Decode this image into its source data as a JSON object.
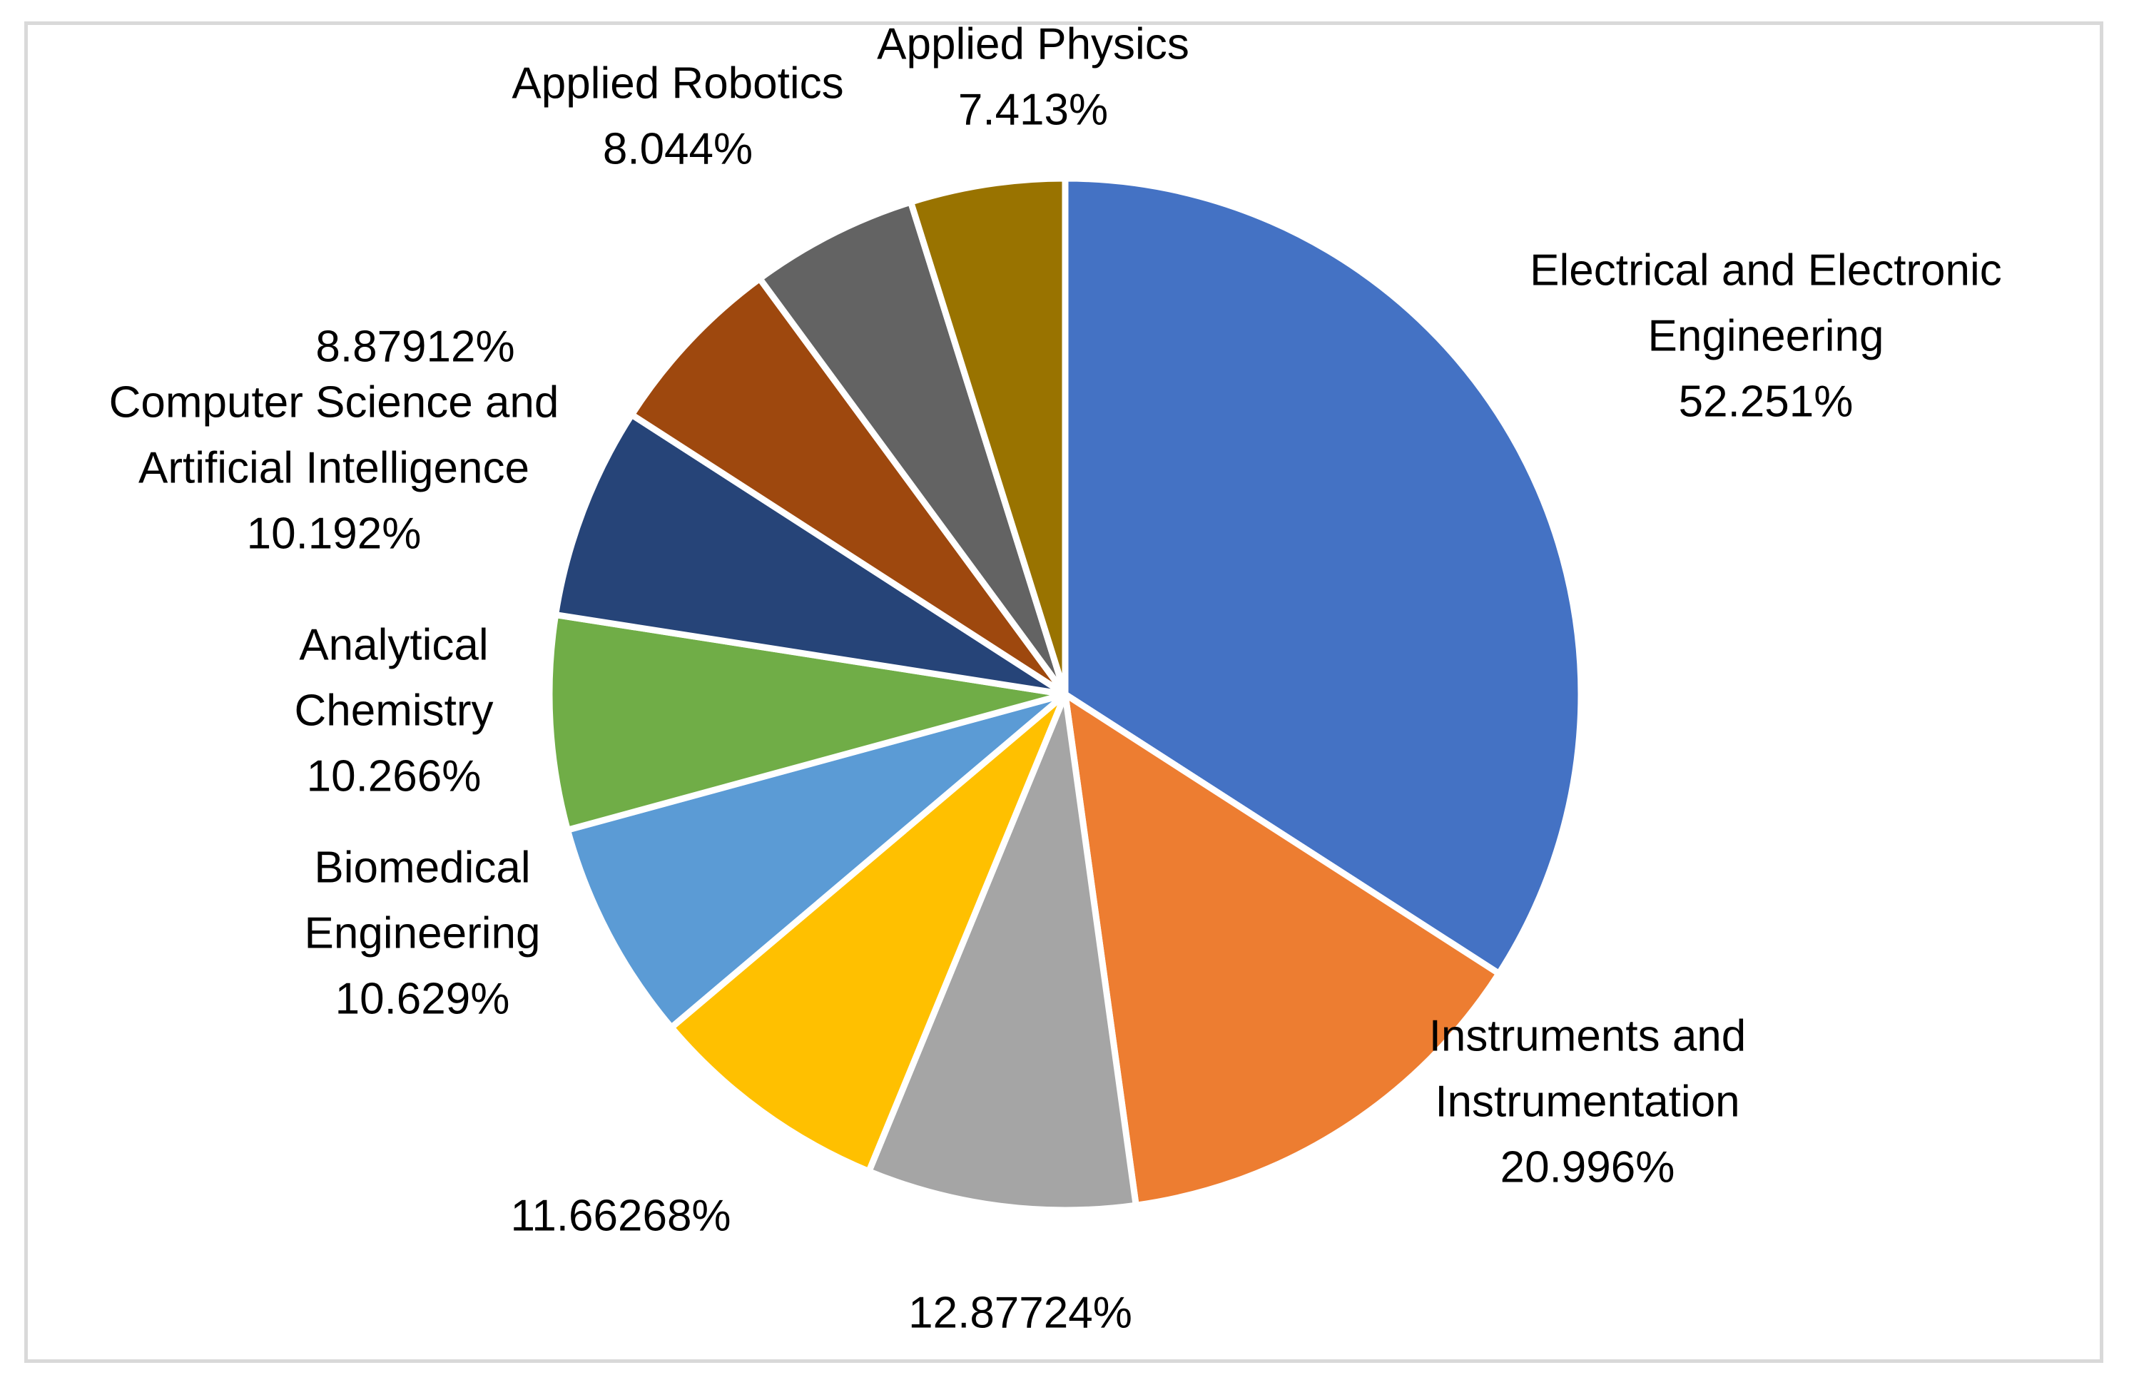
{
  "chart_data": {
    "type": "pie",
    "title": "",
    "start": "top-clockwise",
    "slices": [
      {
        "name": "Electrical and Electronic Engineering",
        "label_lines": [
          "Electrical and Electronic",
          "Engineering",
          "52.251%"
        ],
        "value": 52.251,
        "color": "#4472c4"
      },
      {
        "name": "Instruments and Instrumentation",
        "label_lines": [
          "Instruments and",
          "Instrumentation",
          "20.996%"
        ],
        "value": 20.996,
        "color": "#ed7d31"
      },
      {
        "name": "",
        "label_lines": [
          "12.87724%"
        ],
        "value": 12.87724,
        "color": "#a5a5a5"
      },
      {
        "name": "",
        "label_lines": [
          "11.66268%"
        ],
        "value": 11.66268,
        "color": "#ffc000"
      },
      {
        "name": "Biomedical Engineering",
        "label_lines": [
          "Biomedical",
          "Engineering",
          "10.629%"
        ],
        "value": 10.629,
        "color": "#5b9bd5"
      },
      {
        "name": "Analytical Chemistry",
        "label_lines": [
          "Analytical",
          "Chemistry",
          "10.266%"
        ],
        "value": 10.266,
        "color": "#70ad47"
      },
      {
        "name": "Computer Science and Artificial Intelligence",
        "label_lines": [
          "Computer Science and",
          "Artificial Intelligence",
          "10.192%"
        ],
        "value": 10.192,
        "color": "#264478"
      },
      {
        "name": "",
        "label_lines": [
          "8.87912%"
        ],
        "value": 8.87912,
        "color": "#9e480e"
      },
      {
        "name": "Applied Robotics",
        "label_lines": [
          "Applied Robotics",
          "8.044%"
        ],
        "value": 8.044,
        "color": "#636363"
      },
      {
        "name": "Applied Physics",
        "label_lines": [
          "Applied Physics",
          "7.413%"
        ],
        "value": 7.413,
        "color": "#997300"
      }
    ]
  }
}
